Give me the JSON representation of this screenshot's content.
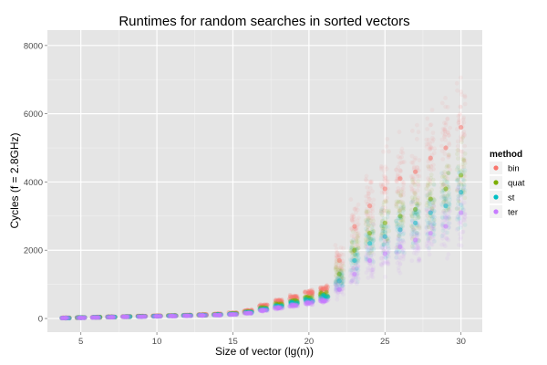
{
  "chart_data": {
    "type": "scatter",
    "title": "Runtimes for random searches in sorted vectors",
    "xlabel": "Size of vector (lg(n))",
    "ylabel": "Cycles (f = 2.8GHz)",
    "xlim": [
      2.8,
      31.4
    ],
    "ylim": [
      -400,
      8450
    ],
    "x_ticks": [
      5,
      10,
      15,
      20,
      25,
      30
    ],
    "y_ticks": [
      0,
      2000,
      4000,
      6000,
      8000
    ],
    "grid": true,
    "legend": {
      "title": "method",
      "position": "right"
    },
    "x": [
      4,
      5,
      6,
      7,
      8,
      9,
      10,
      11,
      12,
      13,
      14,
      15,
      16,
      17,
      18,
      19,
      20,
      21,
      22,
      23,
      24,
      25,
      26,
      27,
      28,
      29,
      30
    ],
    "series": [
      {
        "name": "bin",
        "color": "#f8766d",
        "values": [
          20,
          30,
          40,
          50,
          60,
          70,
          80,
          90,
          100,
          115,
          130,
          160,
          230,
          380,
          500,
          620,
          750,
          870,
          1700,
          2700,
          3300,
          3800,
          4100,
          4300,
          4700,
          5000,
          5600
        ]
      },
      {
        "name": "quat",
        "color": "#7cae00",
        "values": [
          15,
          25,
          35,
          45,
          55,
          65,
          70,
          80,
          90,
          100,
          115,
          140,
          190,
          300,
          400,
          500,
          600,
          700,
          1300,
          2000,
          2500,
          2800,
          3000,
          3200,
          3500,
          3800,
          4200
        ]
      },
      {
        "name": "st",
        "color": "#00bfc4",
        "values": [
          15,
          25,
          35,
          45,
          55,
          60,
          70,
          80,
          90,
          100,
          110,
          130,
          180,
          270,
          360,
          450,
          530,
          620,
          1100,
          1700,
          2200,
          2400,
          2600,
          2800,
          3100,
          3300,
          3700
        ]
      },
      {
        "name": "ter",
        "color": "#c77cff",
        "values": [
          15,
          20,
          30,
          40,
          50,
          55,
          65,
          70,
          80,
          90,
          100,
          120,
          160,
          240,
          310,
          380,
          450,
          520,
          850,
          1300,
          1700,
          1900,
          2100,
          2300,
          2500,
          2700,
          3100
        ]
      }
    ]
  }
}
